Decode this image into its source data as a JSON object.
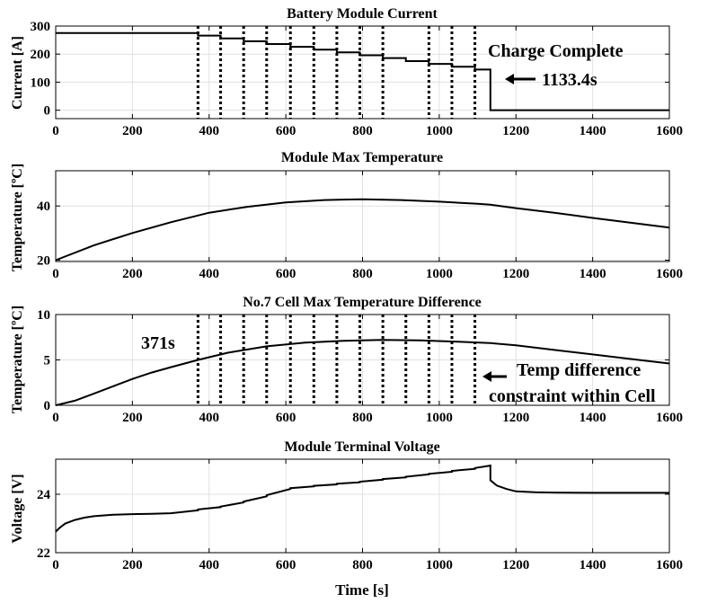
{
  "figure_xlabel": "Time [s]",
  "chart_data": [
    {
      "type": "line",
      "title": "Battery Module Current",
      "ylabel": "Current [A]",
      "xlim": [
        0,
        1600
      ],
      "ylim": [
        -30,
        300
      ],
      "xticks": [
        0,
        200,
        400,
        600,
        800,
        1000,
        1200,
        1400,
        1600
      ],
      "yticks": [
        0,
        100,
        200,
        300
      ],
      "vlines": [
        371,
        430,
        490,
        550,
        612,
        673,
        733,
        793,
        853,
        973,
        1033,
        1093
      ],
      "series": [
        {
          "name": "Current",
          "x": [
            0,
            371,
            371,
            430,
            430,
            490,
            490,
            550,
            550,
            612,
            612,
            673,
            673,
            733,
            733,
            793,
            793,
            853,
            853,
            913,
            913,
            973,
            973,
            1033,
            1033,
            1093,
            1093,
            1133.4,
            1133.4,
            1600
          ],
          "y": [
            275,
            275,
            266,
            266,
            256,
            256,
            246,
            246,
            236,
            236,
            226,
            226,
            216,
            216,
            206,
            206,
            196,
            196,
            186,
            186,
            175,
            175,
            165,
            165,
            155,
            155,
            145,
            145,
            0,
            0
          ]
        }
      ],
      "annotations": {
        "label": "Charge Complete",
        "value": "1133.4s"
      }
    },
    {
      "type": "line",
      "title": "Module Max Temperature",
      "ylabel": "Temperature [ºC]",
      "xlim": [
        0,
        1600
      ],
      "ylim": [
        19.5,
        53
      ],
      "xticks": [
        0,
        200,
        400,
        600,
        800,
        1000,
        1200,
        1400,
        1600
      ],
      "yticks": [
        20,
        40
      ],
      "series": [
        {
          "name": "Max Temperature",
          "x": [
            0,
            100,
            200,
            300,
            400,
            500,
            600,
            700,
            800,
            900,
            1000,
            1100,
            1133,
            1200,
            1300,
            1400,
            1500,
            1600
          ],
          "y": [
            20,
            25.5,
            30,
            34,
            37.5,
            39.7,
            41.3,
            42.2,
            42.5,
            42.2,
            41.6,
            40.8,
            40.5,
            39.2,
            37.5,
            35.6,
            33.8,
            32
          ]
        }
      ]
    },
    {
      "type": "line",
      "title": "No.7 Cell Max Temperature Difference",
      "ylabel": "Temperature [ºC]",
      "xlim": [
        0,
        1600
      ],
      "ylim": [
        0,
        10
      ],
      "xticks": [
        0,
        200,
        400,
        600,
        800,
        1000,
        1200,
        1400,
        1600
      ],
      "yticks": [
        0,
        5,
        10
      ],
      "vlines": [
        371,
        430,
        490,
        550,
        612,
        673,
        733,
        793,
        853,
        913,
        973,
        1033,
        1093
      ],
      "series": [
        {
          "name": "Temperature Difference",
          "x": [
            0,
            50,
            100,
            150,
            200,
            250,
            300,
            371,
            450,
            550,
            650,
            750,
            850,
            950,
            1050,
            1133,
            1200,
            1300,
            1400,
            1500,
            1600
          ],
          "y": [
            0,
            0.5,
            1.3,
            2.1,
            2.9,
            3.6,
            4.2,
            5.0,
            5.8,
            6.5,
            6.9,
            7.1,
            7.2,
            7.15,
            7.0,
            6.85,
            6.6,
            6.1,
            5.6,
            5.1,
            4.6
          ]
        }
      ],
      "annotations": {
        "start_label": "371s",
        "note_line1": "Temp difference",
        "note_line2": "constraint within Cell"
      }
    },
    {
      "type": "line",
      "title": "Module Terminal Voltage",
      "ylabel": "Voltage [V]",
      "xlabel": "Time [s]",
      "xlim": [
        0,
        1600
      ],
      "ylim": [
        22,
        25.2
      ],
      "xticks": [
        0,
        200,
        400,
        600,
        800,
        1000,
        1200,
        1400,
        1600
      ],
      "yticks": [
        22,
        24
      ],
      "series": [
        {
          "name": "Voltage",
          "x": [
            0,
            10,
            25,
            50,
            75,
            100,
            150,
            200,
            250,
            300,
            371,
            371,
            430,
            430,
            490,
            490,
            550,
            550,
            612,
            612,
            673,
            673,
            733,
            733,
            793,
            793,
            853,
            853,
            913,
            913,
            973,
            973,
            1033,
            1033,
            1093,
            1093,
            1133.4,
            1133.4,
            1150,
            1175,
            1200,
            1250,
            1300,
            1400,
            1500,
            1600
          ],
          "y": [
            22.72,
            22.85,
            23.0,
            23.12,
            23.2,
            23.25,
            23.3,
            23.32,
            23.33,
            23.35,
            23.45,
            23.48,
            23.56,
            23.58,
            23.72,
            23.75,
            23.93,
            23.97,
            24.18,
            24.21,
            24.27,
            24.29,
            24.34,
            24.36,
            24.41,
            24.43,
            24.5,
            24.52,
            24.58,
            24.6,
            24.68,
            24.7,
            24.77,
            24.8,
            24.87,
            24.9,
            24.98,
            24.48,
            24.3,
            24.18,
            24.1,
            24.07,
            24.06,
            24.05,
            24.05,
            24.05
          ]
        }
      ]
    }
  ]
}
